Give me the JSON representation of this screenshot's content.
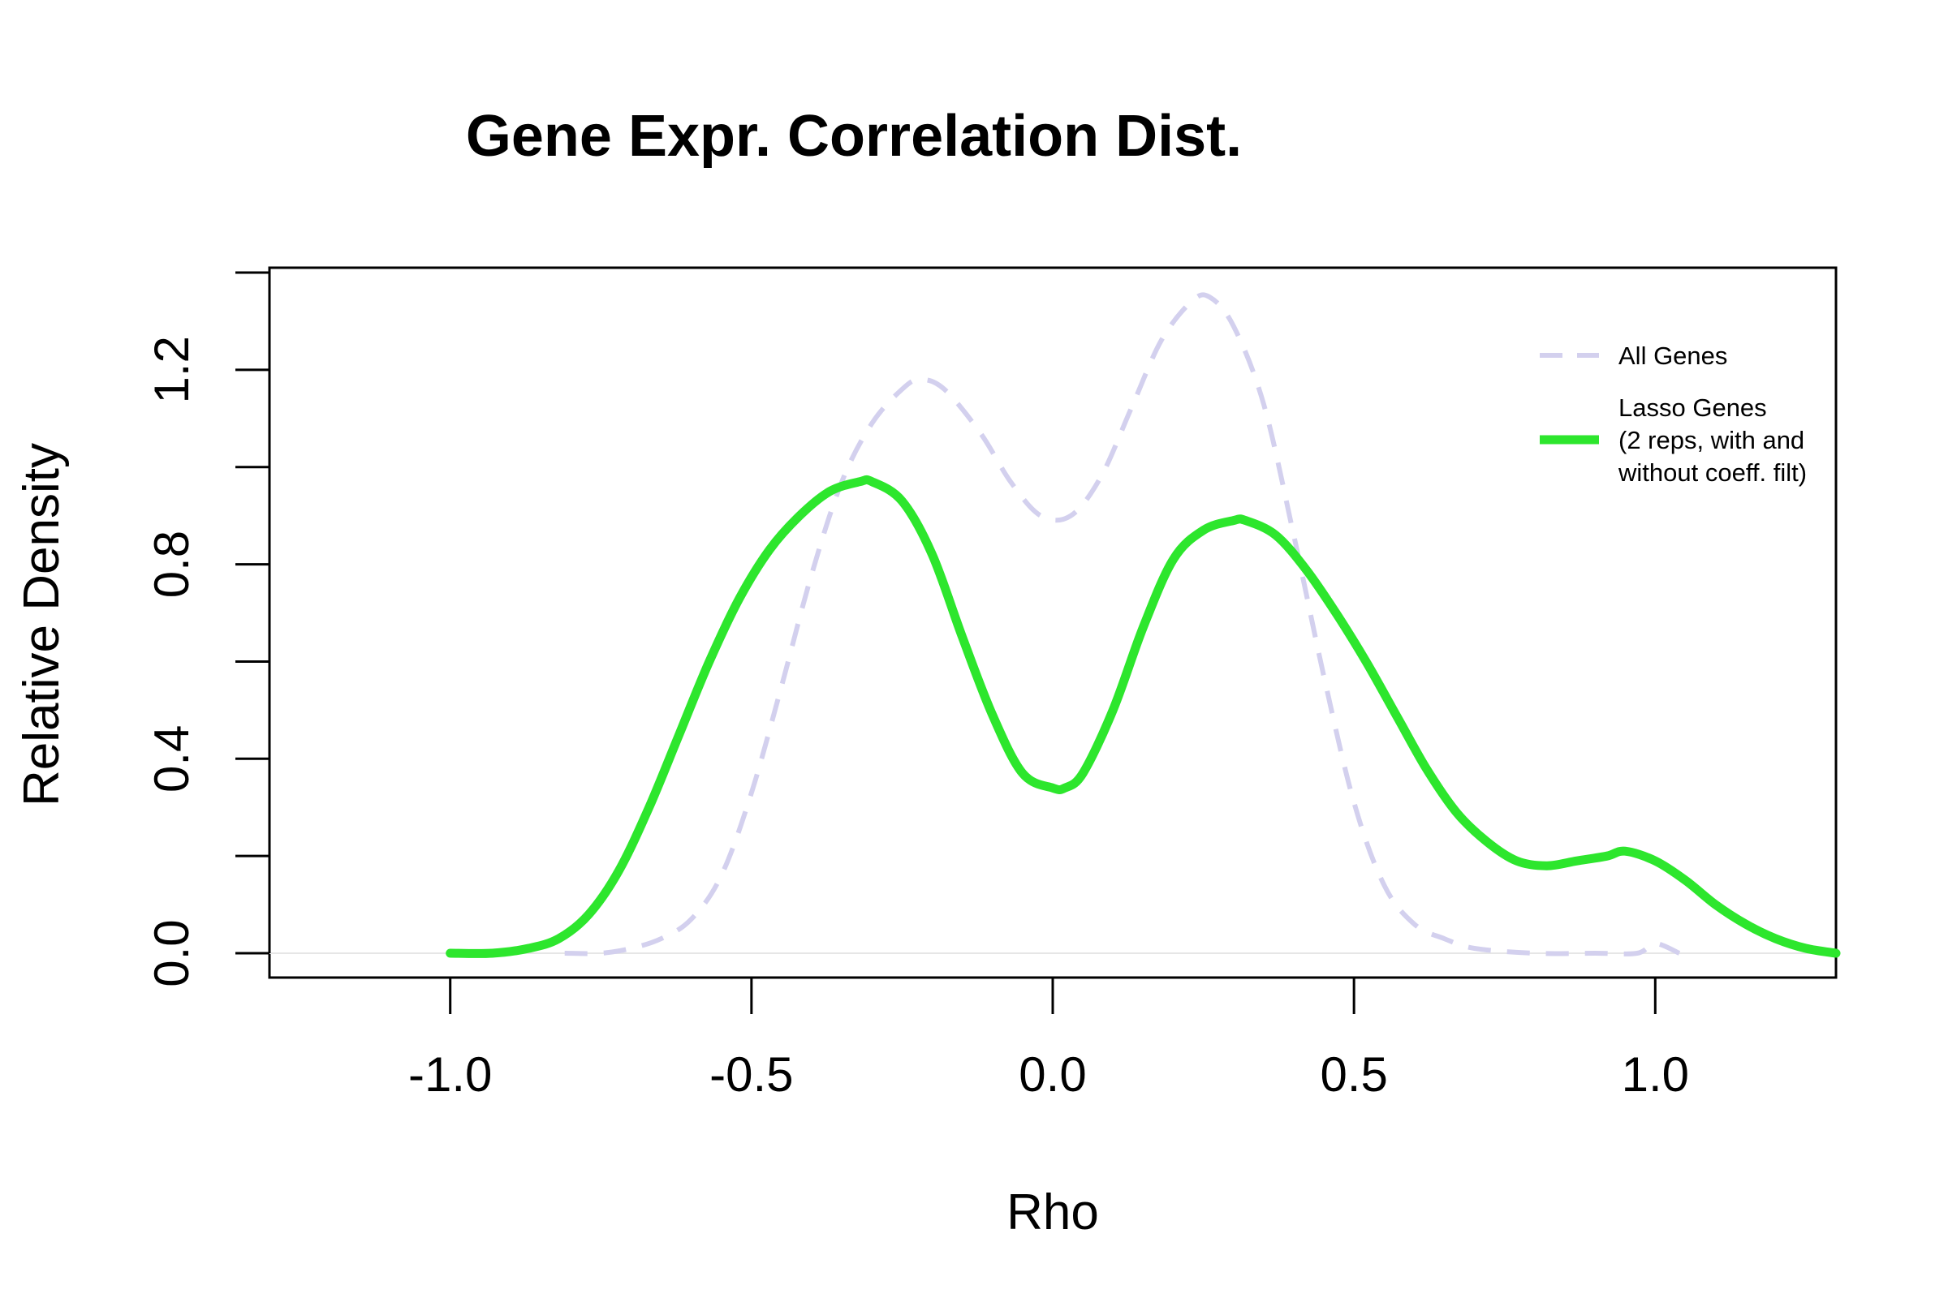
{
  "chart_data": {
    "type": "line",
    "title": "Gene Expr. Correlation Dist.",
    "xlabel": "Rho",
    "ylabel": "Relative Density",
    "xlim": [
      -1.3,
      1.3
    ],
    "ylim": [
      -0.05,
      1.41
    ],
    "x_ticks": [
      -1.0,
      -0.5,
      0.0,
      0.5,
      1.0
    ],
    "x_tick_labels": [
      "-1.0",
      "-0.5",
      "0.0",
      "0.5",
      "1.0"
    ],
    "y_ticks": [
      0.0,
      0.2,
      0.4,
      0.6,
      0.8,
      1.0,
      1.2,
      1.4
    ],
    "y_tick_labels": [
      "0.0",
      "",
      "0.4",
      "",
      "0.8",
      "",
      "1.2",
      ""
    ],
    "grid": false,
    "legend_position": "top-right",
    "series": [
      {
        "name": "All Genes",
        "color": "#d3d0ee",
        "style": "dashed",
        "x": [
          -0.81,
          -0.75,
          -0.7,
          -0.65,
          -0.6,
          -0.55,
          -0.5,
          -0.45,
          -0.4,
          -0.35,
          -0.3,
          -0.25,
          -0.22,
          -0.18,
          -0.12,
          -0.07,
          -0.02,
          0.03,
          0.08,
          0.13,
          0.18,
          0.23,
          0.26,
          0.3,
          0.35,
          0.4,
          0.45,
          0.5,
          0.55,
          0.6,
          0.65,
          0.7,
          0.8,
          0.9,
          0.97,
          1.0,
          1.04
        ],
        "values": [
          0.0,
          0.0,
          0.01,
          0.03,
          0.07,
          0.16,
          0.33,
          0.55,
          0.78,
          0.97,
          1.09,
          1.16,
          1.18,
          1.16,
          1.07,
          0.97,
          0.9,
          0.9,
          0.98,
          1.12,
          1.26,
          1.34,
          1.35,
          1.29,
          1.13,
          0.86,
          0.57,
          0.31,
          0.14,
          0.06,
          0.03,
          0.01,
          0.0,
          0.0,
          0.0,
          0.02,
          0.0
        ]
      },
      {
        "name": "Lasso Genes\n(2 reps, with and\nwithout coeff. filt)",
        "color": "#2de62d",
        "style": "solid",
        "x": [
          -1.0,
          -0.93,
          -0.87,
          -0.82,
          -0.77,
          -0.72,
          -0.67,
          -0.62,
          -0.57,
          -0.52,
          -0.47,
          -0.42,
          -0.37,
          -0.32,
          -0.3,
          -0.25,
          -0.2,
          -0.15,
          -0.1,
          -0.05,
          0.0,
          0.02,
          0.05,
          0.1,
          0.15,
          0.2,
          0.25,
          0.3,
          0.32,
          0.37,
          0.42,
          0.47,
          0.52,
          0.57,
          0.62,
          0.67,
          0.72,
          0.77,
          0.82,
          0.87,
          0.92,
          0.95,
          1.0,
          1.05,
          1.1,
          1.15,
          1.2,
          1.25,
          1.3
        ],
        "values": [
          0.0,
          0.0,
          0.01,
          0.03,
          0.08,
          0.17,
          0.3,
          0.45,
          0.6,
          0.73,
          0.83,
          0.9,
          0.95,
          0.97,
          0.97,
          0.93,
          0.82,
          0.65,
          0.49,
          0.37,
          0.34,
          0.34,
          0.37,
          0.5,
          0.67,
          0.81,
          0.87,
          0.89,
          0.89,
          0.86,
          0.79,
          0.7,
          0.6,
          0.49,
          0.38,
          0.29,
          0.23,
          0.19,
          0.18,
          0.19,
          0.2,
          0.21,
          0.19,
          0.15,
          0.1,
          0.06,
          0.03,
          0.01,
          0.0
        ]
      }
    ]
  }
}
